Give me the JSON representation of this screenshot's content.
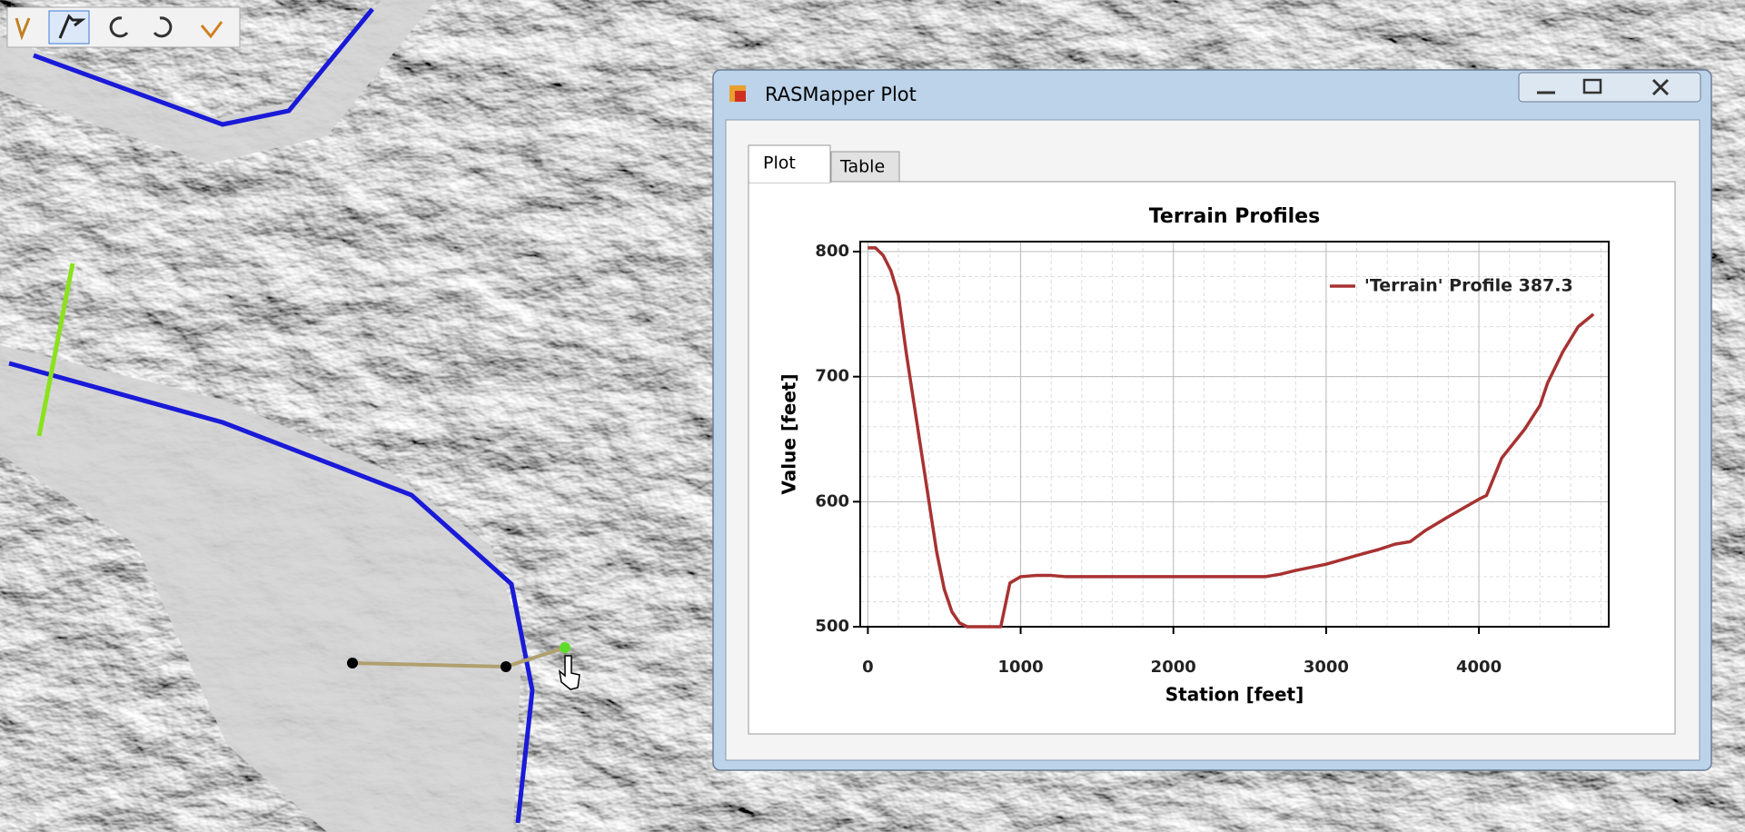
{
  "window": {
    "title": "RASMapper Plot",
    "tabs": [
      "Plot",
      "Table"
    ]
  },
  "chart_data": {
    "type": "line",
    "title": "Terrain Profiles",
    "xlabel": "Station [feet]",
    "ylabel": "Value [feet]",
    "x": [
      0,
      50,
      100,
      150,
      200,
      250,
      300,
      350,
      400,
      450,
      500,
      550,
      600,
      650,
      700,
      800,
      870,
      930,
      1000,
      1100,
      1200,
      1300,
      1500,
      2000,
      2500,
      2600,
      2700,
      2800,
      3000,
      3200,
      3350,
      3450,
      3550,
      3650,
      3800,
      3900,
      4000,
      4050,
      4150,
      4300,
      4400,
      4450,
      4550,
      4650,
      4750
    ],
    "series": [
      {
        "name": "'Terrain' Profile 387.3",
        "color": "#a83232",
        "values": [
          803,
          803,
          797,
          785,
          765,
          720,
          680,
          640,
          600,
          560,
          530,
          512,
          503,
          500,
          500,
          500,
          500,
          535,
          540,
          541,
          541,
          540,
          540,
          540,
          540,
          540,
          542,
          545,
          550,
          557,
          562,
          566,
          568,
          577,
          588,
          595,
          602,
          605,
          635,
          658,
          677,
          695,
          720,
          740,
          750
        ]
      }
    ],
    "xlim": [
      -50,
      4850
    ],
    "ylim": [
      500,
      808
    ],
    "xticks": [
      0,
      1000,
      2000,
      3000,
      4000
    ],
    "yticks": [
      500,
      600,
      700,
      800
    ],
    "grid": true,
    "legend": "upper right"
  }
}
